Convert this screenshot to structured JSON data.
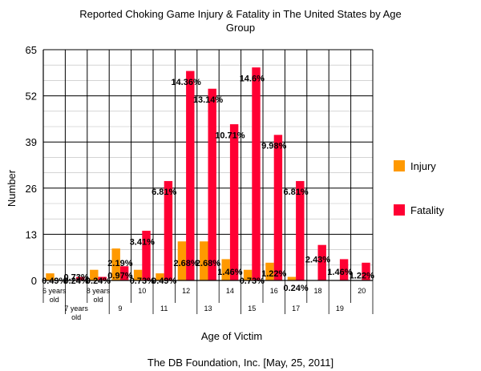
{
  "chart_data": {
    "type": "bar",
    "title_line1": "Reported Choking Game Injury & Fatality in The United States by Age",
    "title_line2": "Group",
    "xlabel": "Age of Victim",
    "ylabel": "Number",
    "footer": "The DB Foundation, Inc. [May, 25, 2011]",
    "ylim": [
      0,
      65
    ],
    "yticks": [
      "0",
      "13",
      "26",
      "39",
      "52",
      "65"
    ],
    "grid": true,
    "legend_position": "right",
    "categories": [
      [
        "6 years",
        "old"
      ],
      [
        "7 years",
        "old"
      ],
      [
        "8 years",
        "old"
      ],
      [
        "9"
      ],
      [
        "10"
      ],
      [
        "11"
      ],
      [
        "12"
      ],
      [
        "13"
      ],
      [
        "14"
      ],
      [
        "15"
      ],
      [
        "16"
      ],
      [
        "17"
      ],
      [
        "18"
      ],
      [
        "19"
      ],
      [
        "20"
      ]
    ],
    "series": [
      {
        "name": "Injury",
        "color": "#FF9900",
        "values": [
          2,
          0,
          3,
          9,
          3,
          2,
          11,
          11,
          6,
          3,
          5,
          1,
          0,
          0,
          0
        ]
      },
      {
        "name": "Fatality",
        "color": "#FF0033",
        "values": [
          0,
          1,
          1,
          4,
          14,
          28,
          59,
          54,
          44,
          60,
          41,
          28,
          10,
          6,
          5
        ]
      }
    ],
    "annotations": [
      {
        "text": "0.49%",
        "x": 0,
        "y": 0
      },
      {
        "text": "0.24%",
        "x": 1,
        "y": 0
      },
      {
        "text": "0.73%",
        "x": 1,
        "y": 1
      },
      {
        "text": "0.24%",
        "x": 2,
        "y": 0
      },
      {
        "text": "2.19%",
        "x": 3,
        "y": 5
      },
      {
        "text": "0.97%",
        "x": 3,
        "y": 1.5
      },
      {
        "text": "0.73%",
        "x": 4,
        "y": 0
      },
      {
        "text": "3.41%",
        "x": 4,
        "y": 11
      },
      {
        "text": "0.49%",
        "x": 5,
        "y": 0
      },
      {
        "text": "6.81%",
        "x": 5,
        "y": 25
      },
      {
        "text": "2.68%",
        "x": 6,
        "y": 5
      },
      {
        "text": "14.36%",
        "x": 6,
        "y": 56
      },
      {
        "text": "2.68%",
        "x": 7,
        "y": 5
      },
      {
        "text": "13.14%",
        "x": 7,
        "y": 51
      },
      {
        "text": "1.46%",
        "x": 8,
        "y": 2.5
      },
      {
        "text": "10.71%",
        "x": 8,
        "y": 41
      },
      {
        "text": "0.73%",
        "x": 9,
        "y": 0
      },
      {
        "text": "14.6%",
        "x": 9,
        "y": 57
      },
      {
        "text": "1.22%",
        "x": 10,
        "y": 2
      },
      {
        "text": "9.98%",
        "x": 10,
        "y": 38
      },
      {
        "text": "0.24%",
        "x": 11,
        "y": -2
      },
      {
        "text": "6.81%",
        "x": 11,
        "y": 25
      },
      {
        "text": "2.43%",
        "x": 12,
        "y": 6
      },
      {
        "text": "1.46%",
        "x": 13,
        "y": 2.5
      },
      {
        "text": "1.22%",
        "x": 14,
        "y": 1.5
      }
    ]
  }
}
